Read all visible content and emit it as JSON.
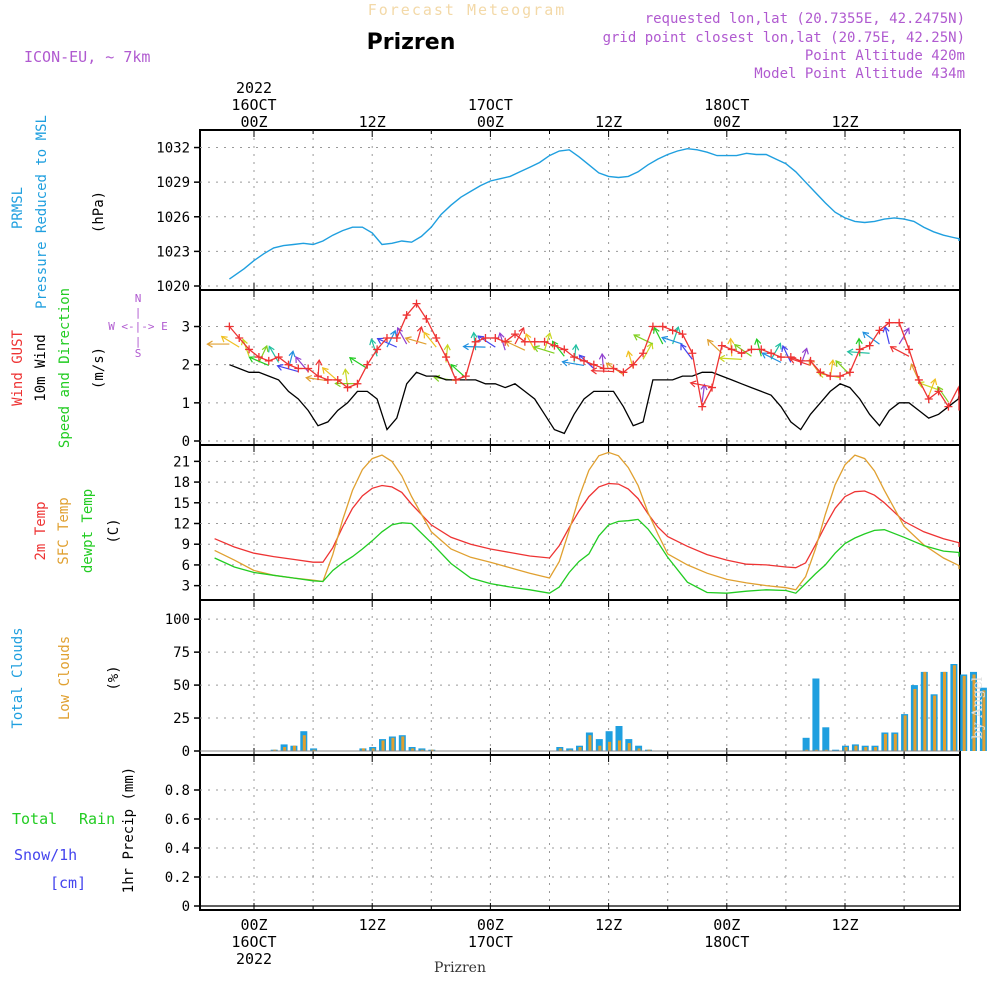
{
  "header": {
    "subtitle": "Forecast Meteogram",
    "title": "Prizren",
    "model": "ICON-EU, ~ 7km",
    "requested": "requested lon,lat (20.7355E, 42.2475N)",
    "gridpoint": "grid point closest lon,lat (20.75E, 42.25N)",
    "point_altitude": "Point Altitude 420m",
    "model_altitude": "Model Point Altitude 434m",
    "footer": "Prizren",
    "watermark": "by Angel"
  },
  "colors": {
    "pressure": "#1f9fdf",
    "gust": "#ee3333",
    "wind": "#000000",
    "temp2m": "#ee3333",
    "sfctemp": "#e0a030",
    "dewpt": "#22cc22",
    "total_clouds": "#1f9fdf",
    "low_clouds": "#e0a030",
    "rain": "#22cc22",
    "snow": "#4444ee",
    "purple": "#b05ad0"
  },
  "time_axis": {
    "top": [
      {
        "t": 0,
        "lines": [
          "2022",
          "16OCT",
          "00Z"
        ]
      },
      {
        "t": 12,
        "lines": [
          "12Z"
        ]
      },
      {
        "t": 24,
        "lines": [
          "17OCT",
          "00Z"
        ]
      },
      {
        "t": 36,
        "lines": [
          "12Z"
        ]
      },
      {
        "t": 48,
        "lines": [
          "18OCT",
          "00Z"
        ]
      },
      {
        "t": 60,
        "lines": [
          "12Z"
        ]
      }
    ],
    "bottom": [
      {
        "t": 0,
        "lines": [
          "00Z",
          "16OCT",
          "2022"
        ]
      },
      {
        "t": 12,
        "lines": [
          "12Z"
        ]
      },
      {
        "t": 24,
        "lines": [
          "00Z",
          "17OCT"
        ]
      },
      {
        "t": 36,
        "lines": [
          "12Z"
        ]
      },
      {
        "t": 48,
        "lines": [
          "00Z",
          "18OCT"
        ]
      },
      {
        "t": 60,
        "lines": [
          "12Z"
        ]
      }
    ]
  },
  "panel_labels": {
    "pressure": [
      "PRMSL",
      "Pressure Reduced to MSL",
      "(hPa)"
    ],
    "wind": [
      "Wind GUST",
      "10m Wind",
      "Speed and Direction",
      "(m/s)"
    ],
    "compass": [
      "W <-|-> E",
      "N",
      "S"
    ],
    "temp": [
      "2m Temp",
      "SFC Temp",
      "dewpt Temp",
      "(C)"
    ],
    "clouds": [
      "Total Clouds",
      "Low Clouds",
      "(%)"
    ],
    "precip": [
      "Total",
      "Rain",
      "Snow/1h",
      "[cm]",
      "1hr Precip (mm)"
    ]
  },
  "chart_data": [
    {
      "type": "line",
      "name": "PRMSL Pressure Reduced to MSL",
      "ylabel": "(hPa)",
      "ylim": [
        1020,
        1033
      ],
      "yticks": [
        1020,
        1023,
        1026,
        1029,
        1032
      ],
      "x": [
        -2.5,
        -1,
        0,
        1,
        2,
        3,
        4,
        5,
        6,
        7,
        8,
        9,
        10,
        11,
        12,
        13,
        14,
        15,
        16,
        17,
        18,
        19,
        20,
        21,
        22,
        23,
        24,
        25,
        26,
        27,
        28,
        29,
        30,
        31,
        32,
        33,
        34,
        35,
        36,
        37,
        38,
        39,
        40,
        41,
        42,
        43,
        44,
        45,
        46,
        47,
        48,
        49,
        50,
        51,
        52,
        53,
        54,
        55,
        56,
        57,
        58,
        59,
        60,
        61,
        62,
        63,
        64,
        65,
        66,
        67,
        68,
        69,
        70,
        71,
        72,
        73,
        73.5
      ],
      "values": [
        1020.6,
        1021.5,
        1022.2,
        1022.8,
        1023.3,
        1023.5,
        1023.6,
        1023.7,
        1023.6,
        1023.9,
        1024.4,
        1024.8,
        1025.1,
        1025.1,
        1024.6,
        1023.6,
        1023.7,
        1023.9,
        1023.8,
        1024.3,
        1025.1,
        1026.2,
        1027.0,
        1027.7,
        1028.2,
        1028.7,
        1029.1,
        1029.3,
        1029.5,
        1029.9,
        1030.3,
        1030.7,
        1031.3,
        1031.7,
        1031.8,
        1031.2,
        1030.5,
        1029.8,
        1029.5,
        1029.4,
        1029.5,
        1029.9,
        1030.5,
        1031.0,
        1031.4,
        1031.7,
        1031.9,
        1031.8,
        1031.6,
        1031.3,
        1031.3,
        1031.3,
        1031.5,
        1031.4,
        1031.4,
        1031.0,
        1030.6,
        1029.9,
        1029.0,
        1028.1,
        1027.2,
        1026.4,
        1025.9,
        1025.6,
        1025.5,
        1025.6,
        1025.8,
        1025.9,
        1025.8,
        1025.6,
        1025.1,
        1024.7,
        1024.4,
        1024.2,
        1024.1,
        1024.0,
        1023.9
      ]
    },
    {
      "type": "line",
      "name": "Wind GUST / 10m Wind Speed and Direction",
      "ylabel": "(m/s)",
      "ylim": [
        0,
        3.8
      ],
      "yticks": [
        0,
        1,
        2,
        3
      ],
      "x": [
        -2.5,
        -1.5,
        -0.5,
        0.5,
        1.5,
        2.5,
        3.5,
        4.5,
        5.5,
        6.5,
        7.5,
        8.5,
        9.5,
        10.5,
        11.5,
        12.5,
        13.5,
        14.5,
        15.5,
        16.5,
        17.5,
        18.5,
        19.5,
        20.5,
        21.5,
        22.5,
        23.5,
        24.5,
        25.5,
        26.5,
        27.5,
        28.5,
        29.5,
        30.5,
        31.5,
        32.5,
        33.5,
        34.5,
        35.5,
        36.5,
        37.5,
        38.5,
        39.5,
        40.5,
        41.5,
        42.5,
        43.5,
        44.5,
        45.5,
        46.5,
        47.5,
        48.5,
        49.5,
        50.5,
        51.5,
        52.5,
        53.5,
        54.5,
        55.5,
        56.5,
        57.5,
        58.5,
        59.5,
        60.5,
        61.5,
        62.5,
        63.5,
        64.5,
        65.5,
        66.5,
        67.5,
        68.5,
        69.5,
        70.5,
        71.5,
        72.5,
        73.5
      ],
      "series": [
        {
          "name": "Wind GUST",
          "values": [
            3.0,
            2.7,
            2.4,
            2.2,
            2.1,
            2.2,
            2.0,
            1.9,
            1.9,
            1.7,
            1.6,
            1.6,
            1.4,
            1.5,
            2.0,
            2.4,
            2.7,
            2.7,
            3.3,
            3.6,
            3.2,
            2.7,
            2.2,
            1.6,
            1.7,
            2.6,
            2.7,
            2.7,
            2.6,
            2.8,
            2.6,
            2.6,
            2.6,
            2.5,
            2.4,
            2.2,
            2.1,
            2.0,
            1.9,
            1.9,
            1.8,
            2.0,
            2.3,
            3.0,
            3.0,
            2.9,
            2.8,
            2.3,
            0.9,
            1.4,
            2.5,
            2.4,
            2.3,
            2.4,
            2.4,
            2.3,
            2.2,
            2.2,
            2.1,
            2.1,
            1.8,
            1.7,
            1.7,
            1.8,
            2.4,
            2.5,
            2.9,
            3.1,
            3.1,
            2.4,
            1.6,
            1.1,
            1.3,
            0.9,
            1.4,
            1.2,
            0.8
          ]
        },
        {
          "name": "10m Wind",
          "values": [
            2.0,
            1.9,
            1.8,
            1.8,
            1.7,
            1.6,
            1.3,
            1.1,
            0.8,
            0.4,
            0.5,
            0.8,
            1.0,
            1.3,
            1.3,
            1.1,
            0.3,
            0.6,
            1.5,
            1.8,
            1.7,
            1.7,
            1.6,
            1.6,
            1.6,
            1.6,
            1.5,
            1.5,
            1.4,
            1.5,
            1.3,
            1.1,
            0.7,
            0.3,
            0.2,
            0.7,
            1.1,
            1.3,
            1.3,
            1.3,
            0.9,
            0.4,
            0.5,
            1.6,
            1.6,
            1.6,
            1.7,
            1.7,
            1.8,
            1.8,
            1.7,
            1.6,
            1.5,
            1.4,
            1.3,
            1.2,
            0.9,
            0.5,
            0.3,
            0.7,
            1.0,
            1.3,
            1.5,
            1.4,
            1.1,
            0.7,
            0.4,
            0.8,
            1.0,
            1.0,
            0.8,
            0.6,
            0.7,
            0.9,
            1.1,
            1.2,
            1.4
          ]
        }
      ]
    },
    {
      "type": "line",
      "name": "2m Temp / SFC Temp / dewpt Temp",
      "ylabel": "(C)",
      "ylim": [
        1.5,
        22.5
      ],
      "yticks": [
        3,
        6,
        9,
        12,
        15,
        18,
        21
      ],
      "x": [
        -4,
        -2,
        0,
        2,
        4,
        6,
        7,
        8,
        9,
        10,
        11,
        12,
        13,
        14,
        15,
        16,
        18,
        20,
        22,
        24,
        26,
        28,
        30,
        31,
        32,
        33,
        34,
        35,
        36,
        37,
        38,
        39,
        40,
        41,
        42,
        44,
        46,
        48,
        50,
        52,
        54,
        55,
        56,
        57,
        58,
        59,
        60,
        61,
        62,
        63,
        64,
        66,
        68,
        70,
        72,
        74
      ],
      "series": [
        {
          "name": "2m Temp",
          "values": [
            9.8,
            8.6,
            7.7,
            7.2,
            6.8,
            6.4,
            6.4,
            8.5,
            11.5,
            14.2,
            16.0,
            17.1,
            17.5,
            17.3,
            16.5,
            14.8,
            11.8,
            10.0,
            9.0,
            8.3,
            7.8,
            7.3,
            7.0,
            8.8,
            11.4,
            13.8,
            15.9,
            17.3,
            17.8,
            17.7,
            17.0,
            15.6,
            13.4,
            11.5,
            10.1,
            8.7,
            7.5,
            6.7,
            6.1,
            6.0,
            5.7,
            5.6,
            6.3,
            8.9,
            11.7,
            14.2,
            15.9,
            16.6,
            16.7,
            16.1,
            15.0,
            12.3,
            10.8,
            9.8,
            9.2,
            8.6
          ]
        },
        {
          "name": "SFC Temp",
          "values": [
            8.1,
            6.7,
            5.2,
            4.5,
            4.1,
            3.8,
            3.6,
            7.5,
            12.5,
            16.8,
            19.8,
            21.4,
            21.9,
            21.0,
            18.9,
            15.9,
            10.8,
            8.3,
            7.1,
            6.4,
            5.6,
            4.8,
            4.1,
            6.5,
            11.0,
            15.8,
            19.7,
            21.8,
            22.3,
            21.8,
            20.1,
            17.5,
            13.6,
            10.5,
            7.6,
            6.0,
            4.8,
            3.9,
            3.4,
            3.0,
            2.7,
            2.4,
            4.3,
            8.3,
            13.3,
            17.6,
            20.5,
            21.9,
            21.4,
            19.6,
            16.8,
            11.6,
            8.9,
            7.0,
            5.9,
            5.4
          ]
        },
        {
          "name": "dewpt Temp",
          "values": [
            7.0,
            5.7,
            4.9,
            4.5,
            4.1,
            3.7,
            3.6,
            5.2,
            6.3,
            7.2,
            8.3,
            9.5,
            10.8,
            11.8,
            12.1,
            12.0,
            9.2,
            6.2,
            4.1,
            3.3,
            2.8,
            2.4,
            1.9,
            2.8,
            4.9,
            6.5,
            7.6,
            10.2,
            11.8,
            12.3,
            12.4,
            12.6,
            11.2,
            9.3,
            7.1,
            3.5,
            2.0,
            1.9,
            2.2,
            2.4,
            2.3,
            1.9,
            3.3,
            4.7,
            6.0,
            7.7,
            9.1,
            9.9,
            10.5,
            11.0,
            11.1,
            10.0,
            8.8,
            8.0,
            7.8,
            7.2
          ]
        }
      ]
    },
    {
      "type": "bar",
      "name": "Total Clouds / Low Clouds",
      "ylabel": "(%)",
      "ylim": [
        0,
        110
      ],
      "yticks": [
        0,
        25,
        50,
        75,
        100
      ],
      "categories": [
        2,
        3,
        4,
        5,
        6,
        11,
        12,
        13,
        14,
        15,
        16,
        17,
        18,
        31,
        32,
        33,
        34,
        35,
        36,
        37,
        38,
        39,
        40,
        56,
        57,
        58,
        59,
        60,
        61,
        62,
        63,
        64,
        65,
        66,
        67,
        68,
        69,
        70,
        71,
        72,
        73,
        74
      ],
      "series": [
        {
          "name": "Total Clouds",
          "values": [
            1,
            5,
            4,
            15,
            2,
            2,
            3,
            9,
            11,
            12,
            3,
            2,
            1,
            3,
            2,
            4,
            14,
            9,
            15,
            19,
            9,
            4,
            1,
            10,
            55,
            18,
            1,
            4,
            5,
            4,
            4,
            14,
            14,
            28,
            50,
            60,
            43,
            60,
            66,
            58,
            60,
            48
          ]
        },
        {
          "name": "Low Clouds",
          "values": [
            1,
            3,
            4,
            12,
            1,
            2,
            2,
            8,
            10,
            11,
            2,
            1,
            1,
            2,
            1,
            3,
            12,
            4,
            7,
            8,
            6,
            2,
            1,
            1,
            1,
            1,
            0,
            3,
            4,
            3,
            3,
            13,
            13,
            27,
            47,
            60,
            42,
            60,
            65,
            57,
            58,
            46
          ]
        }
      ]
    },
    {
      "type": "bar",
      "name": "1hr Precip",
      "ylabel": "1hr Precip (mm)",
      "ylim": [
        0,
        1.0
      ],
      "yticks": [
        0,
        0.2,
        0.4,
        0.6,
        0.8
      ],
      "categories": [],
      "series": [
        {
          "name": "Total Rain",
          "values": []
        },
        {
          "name": "Snow/1h",
          "values": []
        }
      ]
    }
  ]
}
